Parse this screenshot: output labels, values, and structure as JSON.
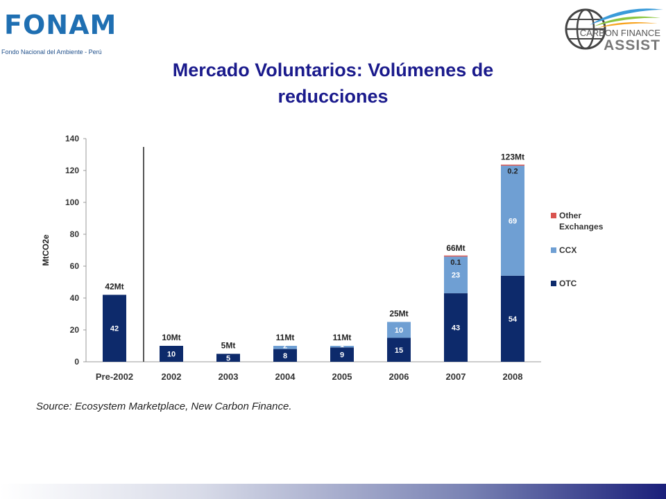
{
  "header": {
    "left_logo": {
      "brand": "FONAM",
      "subtitle": "Fondo Nacional del Ambiente - Perú"
    },
    "right_logo": {
      "line1": "CARBON FINANCE",
      "line2": "ASSIST"
    }
  },
  "slide": {
    "title_line1": "Mercado Voluntarios: Volúmenes de",
    "title_line2": "reducciones",
    "source": "Source: Ecosystem Marketplace, New Carbon Finance."
  },
  "colors": {
    "otc": "#0d2a6b",
    "ccx": "#6f9fd3",
    "other": "#d9534f",
    "title": "#1a1a8c"
  },
  "chart_data": {
    "type": "bar",
    "stacked": true,
    "title": "",
    "xlabel": "",
    "ylabel": "MtCO2e",
    "ylim": [
      0,
      140
    ],
    "yticks": [
      0,
      20,
      40,
      60,
      80,
      100,
      120,
      140
    ],
    "categories": [
      "Pre-2002",
      "2002",
      "2003",
      "2004",
      "2005",
      "2006",
      "2007",
      "2008"
    ],
    "series": [
      {
        "name": "OTC",
        "values": [
          42,
          10,
          5,
          8,
          9,
          15,
          43,
          54
        ],
        "labels": [
          "42",
          "10",
          "5",
          "8",
          "9",
          "15",
          "43",
          "54"
        ]
      },
      {
        "name": "CCX",
        "values": [
          0,
          0,
          0,
          2,
          1,
          10,
          23,
          69
        ],
        "labels": [
          "",
          "",
          "",
          "2",
          "1",
          "10",
          "23",
          "69"
        ]
      },
      {
        "name": "Other Exchanges",
        "values": [
          0,
          0,
          0,
          0,
          0,
          0,
          0.1,
          0.2
        ],
        "labels": [
          "",
          "",
          "",
          "",
          "",
          "",
          "0.1",
          "0.2"
        ]
      }
    ],
    "totals": [
      "42Mt",
      "10Mt",
      "5Mt",
      "11Mt",
      "11Mt",
      "25Mt",
      "66Mt",
      "123Mt"
    ],
    "legend": {
      "placement": "right",
      "entries": [
        "Other Exchanges",
        "CCX",
        "OTC"
      ]
    },
    "grid": false
  }
}
